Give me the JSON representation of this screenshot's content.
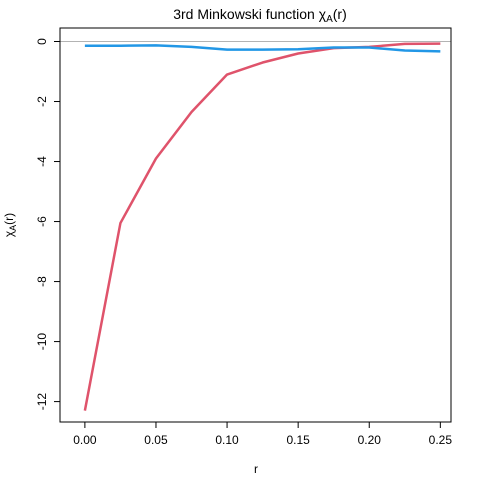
{
  "chart_data": {
    "type": "line",
    "title": "3rd Minkowski function χ_A(r)",
    "title_main": "3rd Minkowski function ",
    "title_symbol": "χ",
    "title_subscript": "A",
    "title_suffix": "(r)",
    "xlabel": "r",
    "ylabel": "χ_A(r)",
    "ylabel_symbol": "χ",
    "ylabel_subscript": "A",
    "ylabel_suffix": "(r)",
    "xlim": [
      -0.0175,
      0.2575
    ],
    "ylim": [
      -12.68,
      0.45
    ],
    "xticks": [
      0.0,
      0.05,
      0.1,
      0.15,
      0.2,
      0.25
    ],
    "xtick_labels": [
      "0.00",
      "0.05",
      "0.10",
      "0.15",
      "0.20",
      "0.25"
    ],
    "yticks": [
      0,
      -2,
      -4,
      -6,
      -8,
      -10,
      -12
    ],
    "ytick_labels": [
      "0",
      "-2",
      "-4",
      "-6",
      "-8",
      "-10",
      "-12"
    ],
    "reference_line": {
      "y": 0,
      "color": "#b3b3b3"
    },
    "grid": false,
    "legend": "none",
    "series": [
      {
        "color": "#df536b",
        "x": [
          0.0,
          0.025,
          0.05,
          0.075,
          0.1,
          0.125,
          0.15,
          0.175,
          0.2,
          0.225,
          0.25
        ],
        "y": [
          -12.3,
          -6.05,
          -3.9,
          -2.35,
          -1.1,
          -0.7,
          -0.4,
          -0.22,
          -0.18,
          -0.08,
          -0.07
        ]
      },
      {
        "color": "#2297e6",
        "x": [
          0.0,
          0.025,
          0.05,
          0.075,
          0.1,
          0.125,
          0.15,
          0.175,
          0.2,
          0.225,
          0.25
        ],
        "y": [
          -0.14,
          -0.14,
          -0.13,
          -0.18,
          -0.27,
          -0.27,
          -0.26,
          -0.2,
          -0.2,
          -0.3,
          -0.33
        ]
      }
    ]
  }
}
